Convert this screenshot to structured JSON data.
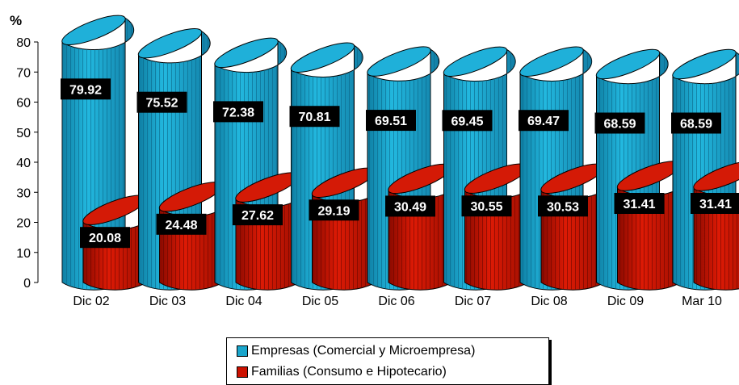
{
  "chart_data": {
    "type": "bar",
    "ylabel": "%",
    "ylim": [
      0,
      80
    ],
    "yticks": [
      0,
      10,
      20,
      30,
      40,
      50,
      60,
      70,
      80
    ],
    "categories": [
      "Dic 02",
      "Dic 03",
      "Dic 04",
      "Dic 05",
      "Dic 06",
      "Dic 07",
      "Dic 08",
      "Dic 09",
      "Mar 10"
    ],
    "series": [
      {
        "name": "Empresas (Comercial y Microempresa)",
        "color": "#1aa6cc",
        "values": [
          79.92,
          75.52,
          72.38,
          70.81,
          69.51,
          69.45,
          69.47,
          68.59,
          68.59
        ]
      },
      {
        "name": "Familias (Consumo e Hipotecario)",
        "color": "#cc1100",
        "values": [
          20.08,
          24.48,
          27.62,
          29.19,
          30.49,
          30.55,
          30.53,
          31.41,
          31.41
        ]
      }
    ],
    "legend_position": "bottom-center",
    "grid": false,
    "style": "3d-cylinder"
  }
}
